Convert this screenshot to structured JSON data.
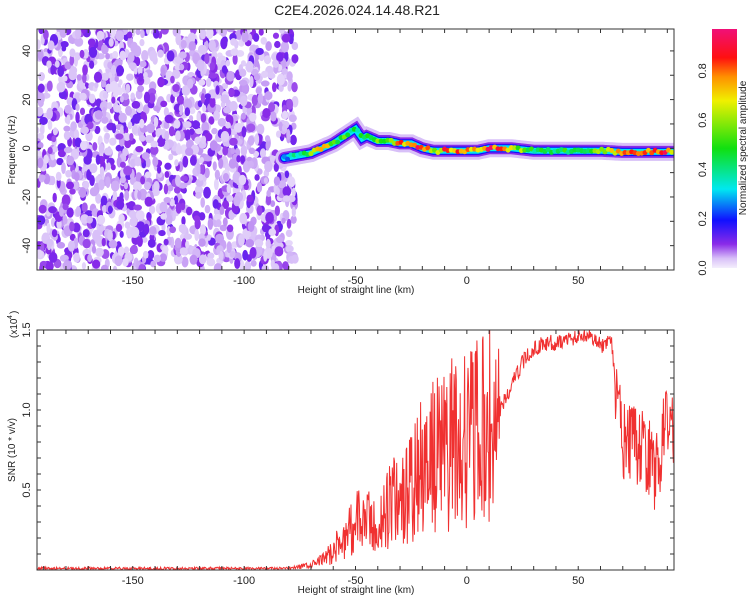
{
  "title": "C2E4.2026.024.14.48.R21",
  "chart_data": [
    {
      "type": "heatmap",
      "title": "C2E4.2026.024.14.48.R21",
      "xlabel": "Height of straight line (km)",
      "ylabel": "Frequency (Hz)",
      "xlim": [
        -193,
        93
      ],
      "ylim": [
        -50,
        49
      ],
      "xticks": [
        "-150",
        "-100",
        "-50",
        "0",
        "50"
      ],
      "xtick_values": [
        -150,
        -100,
        -50,
        0,
        50
      ],
      "yticks": [
        "40",
        "20",
        "0",
        "-20",
        "-40"
      ],
      "ytick_values": [
        40,
        20,
        0,
        -20,
        -40
      ],
      "noise_region_km": [
        -193,
        -80
      ],
      "noise_amplitude_range": [
        0.0,
        0.12
      ],
      "ridge": {
        "x": [
          -82,
          -76,
          -70,
          -65,
          -60,
          -55,
          -50,
          -47,
          -45,
          -40,
          -35,
          -30,
          -25,
          -20,
          -15,
          -10,
          -5,
          0,
          5,
          10,
          15,
          20,
          30,
          40,
          50,
          60,
          70,
          80,
          90
        ],
        "frequency": [
          -4,
          -3,
          -2,
          0,
          2,
          5,
          8,
          4,
          5,
          3,
          3,
          2,
          2,
          0,
          -1,
          -1,
          -1,
          -1,
          -1,
          0,
          0,
          0,
          -1,
          -1,
          -1,
          -1,
          -1.5,
          -1.5,
          -1.5
        ],
        "amplitude": [
          0.25,
          0.45,
          0.6,
          0.85,
          0.6,
          0.6,
          0.45,
          0.55,
          0.5,
          0.6,
          0.6,
          0.85,
          0.9,
          0.95,
          0.6,
          0.85,
          0.9,
          0.9,
          0.85,
          0.9,
          0.85,
          0.7,
          0.5,
          0.5,
          0.55,
          0.6,
          0.8,
          0.9,
          0.9
        ]
      },
      "colorbar": {
        "label": "Normalized spectral amplitude",
        "ticks": [
          "0.0",
          "0.2",
          "0.4",
          "0.6",
          "0.8"
        ],
        "tick_values": [
          0.0,
          0.2,
          0.4,
          0.6,
          0.8
        ],
        "range": [
          0,
          0.97
        ]
      }
    },
    {
      "type": "line",
      "xlabel": "Height of straight line (km)",
      "ylabel": "SNR (10 * v/v)",
      "yscale_label": "(x10",
      "yscale_exp": "4",
      "xlim": [
        -193,
        93
      ],
      "ylim": [
        0,
        1.5
      ],
      "xticks": [
        "-150",
        "-100",
        "-50",
        "0",
        "50"
      ],
      "xtick_values": [
        -150,
        -100,
        -50,
        0,
        50
      ],
      "yticks": [
        "0.5",
        "1.0",
        "1.5"
      ],
      "ytick_values": [
        0.5,
        1.0,
        1.5
      ],
      "series": [
        {
          "name": "SNR",
          "color": "#f03030",
          "x": [
            -193,
            -150,
            -100,
            -80,
            -75,
            -70,
            -65,
            -60,
            -55,
            -50,
            -45,
            -40,
            -35,
            -30,
            -25,
            -20,
            -15,
            -10,
            -5,
            0,
            5,
            10,
            15,
            20,
            25,
            30,
            35,
            40,
            45,
            50,
            55,
            60,
            65,
            67,
            70,
            75,
            80,
            85,
            90,
            93
          ],
          "values": [
            0.01,
            0.01,
            0.01,
            0.01,
            0.02,
            0.03,
            0.06,
            0.12,
            0.2,
            0.3,
            0.3,
            0.25,
            0.4,
            0.45,
            0.5,
            0.65,
            0.7,
            0.75,
            0.8,
            0.82,
            0.85,
            0.9,
            1.0,
            1.15,
            1.3,
            1.38,
            1.42,
            1.42,
            1.44,
            1.46,
            1.48,
            1.4,
            1.42,
            1.1,
            0.8,
            0.78,
            0.75,
            0.6,
            0.95,
            0.9
          ]
        }
      ]
    }
  ]
}
